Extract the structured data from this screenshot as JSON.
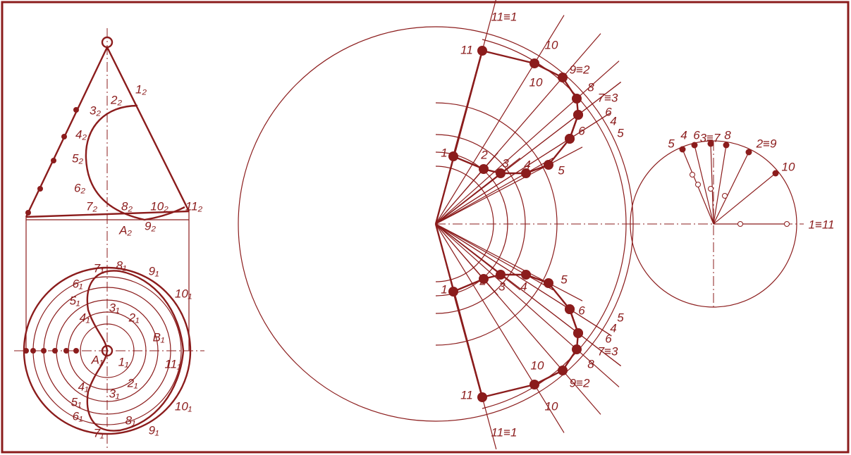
{
  "front_view": {
    "labels": [
      "1₂",
      "2₂",
      "3₂",
      "4₂",
      "5₂",
      "6₂",
      "7₂",
      "8₂",
      "10₂",
      "11₂",
      "A₂",
      "9₂"
    ]
  },
  "top_view": {
    "labels": [
      "7₁",
      "8₁",
      "9₁",
      "6₁",
      "5₁",
      "3₁",
      "4₁",
      "2₁",
      "B₁",
      "10₁",
      "A₁",
      "1₁",
      "11₁",
      "4₁",
      "2₁",
      "3₁",
      "5₁",
      "10₁",
      "6₁",
      "8₁",
      "7₁",
      "9₁"
    ]
  },
  "development": {
    "labels": [
      "11≡1",
      "11",
      "10",
      "10",
      "9≡2",
      "8",
      "7≡3",
      "6",
      "4",
      "5",
      "6",
      "1",
      "2",
      "3",
      "4",
      "5",
      "1",
      "2",
      "3",
      "4",
      "5",
      "5",
      "6",
      "4",
      "6",
      "7≡3",
      "8",
      "9≡2",
      "10",
      "10",
      "11",
      "11≡1"
    ]
  },
  "rotation_circle": {
    "labels": [
      "3≡7",
      "5",
      "4",
      "6",
      "8",
      "2≡9",
      "10",
      "1≡11"
    ]
  }
}
